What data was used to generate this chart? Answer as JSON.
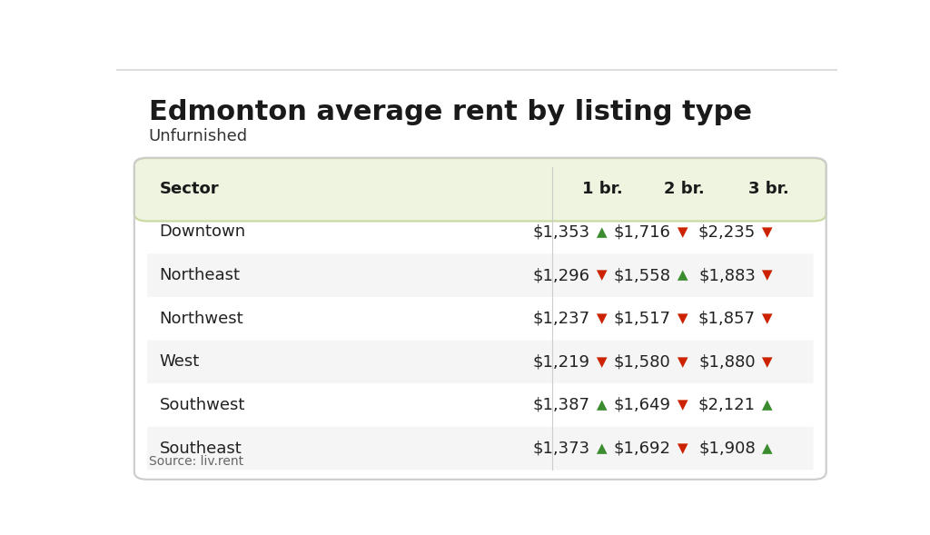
{
  "title": "Edmonton average rent by listing type",
  "subtitle": "Unfurnished",
  "source": "Source: liv.rent",
  "columns": [
    "Sector",
    "1 br.",
    "2 br.",
    "3 br."
  ],
  "rows": [
    {
      "sector": "Downtown",
      "br1": "$1,353",
      "br1_up": true,
      "br2": "$1,716",
      "br2_up": false,
      "br3": "$2,235",
      "br3_up": false
    },
    {
      "sector": "Northeast",
      "br1": "$1,296",
      "br1_up": false,
      "br2": "$1,558",
      "br2_up": true,
      "br3": "$1,883",
      "br3_up": false
    },
    {
      "sector": "Northwest",
      "br1": "$1,237",
      "br1_up": false,
      "br2": "$1,517",
      "br2_up": false,
      "br3": "$1,857",
      "br3_up": false
    },
    {
      "sector": "West",
      "br1": "$1,219",
      "br1_up": false,
      "br2": "$1,580",
      "br2_up": false,
      "br3": "$1,880",
      "br3_up": false
    },
    {
      "sector": "Southwest",
      "br1": "$1,387",
      "br1_up": true,
      "br2": "$1,649",
      "br2_up": false,
      "br3": "$2,121",
      "br3_up": true
    },
    {
      "sector": "Southeast",
      "br1": "$1,373",
      "br1_up": true,
      "br2": "$1,692",
      "br2_up": false,
      "br3": "$1,908",
      "br3_up": true
    }
  ],
  "header_bg": "#eef4e0",
  "row_bg_even": "#f5f5f5",
  "row_bg_odd": "#ffffff",
  "border_color": "#cccccc",
  "up_color": "#3a8c2f",
  "down_color": "#cc2200",
  "bg_color": "#ffffff",
  "title_fontsize": 22,
  "subtitle_fontsize": 13,
  "header_fontsize": 13,
  "cell_fontsize": 13,
  "source_fontsize": 10
}
